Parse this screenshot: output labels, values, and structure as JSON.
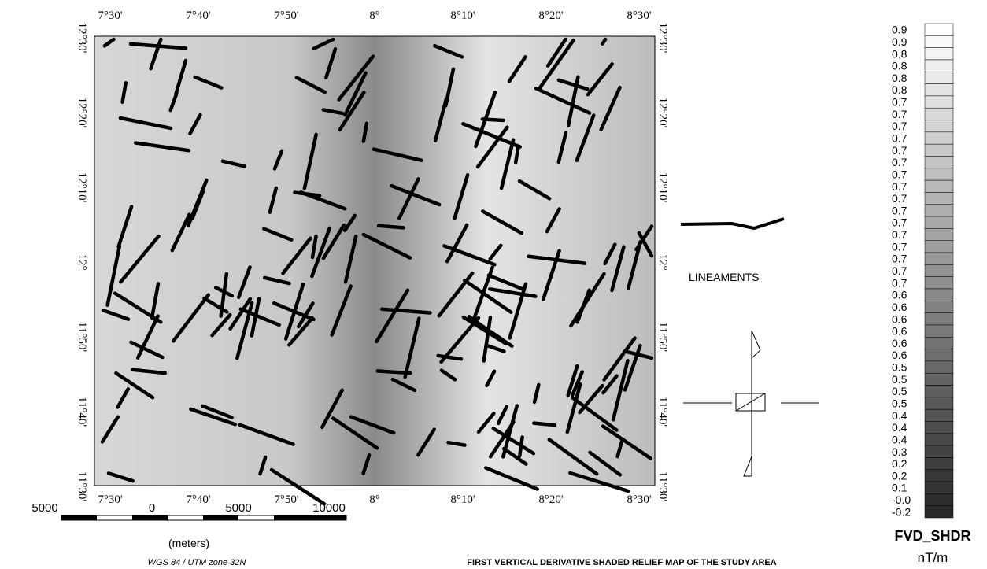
{
  "map": {
    "title": "FIRST VERTICAL DERIVATIVE SHADED RELIEF MAP OF THE STUDY AREA",
    "lon_labels": [
      "7°30'",
      "7°40'",
      "7°50'",
      "8°",
      "8°10'",
      "8°20'",
      "8°30'"
    ],
    "lat_labels": [
      "12°30'",
      "12°20'",
      "12°10'",
      "12°",
      "11°50'",
      "11°40'",
      "11°30'"
    ],
    "legend": {
      "label": "LINEAMENTS"
    },
    "scale_bar": {
      "labels": [
        "5000",
        "0",
        "5000",
        "10000"
      ],
      "unit": "(meters)",
      "projection": "WGS 84 / UTM zone 32N"
    },
    "colorbar": {
      "labels": [
        "0.9",
        "0.9",
        "0.8",
        "0.8",
        "0.8",
        "0.8",
        "0.7",
        "0.7",
        "0.7",
        "0.7",
        "0.7",
        "0.7",
        "0.7",
        "0.7",
        "0.7",
        "0.7",
        "0.7",
        "0.7",
        "0.7",
        "0.7",
        "0.7",
        "0.7",
        "0.6",
        "0.6",
        "0.6",
        "0.6",
        "0.6",
        "0.6",
        "0.5",
        "0.5",
        "0.5",
        "0.5",
        "0.4",
        "0.4",
        "0.4",
        "0.3",
        "0.2",
        "0.2",
        "0.1",
        "-0.0",
        "-0.2"
      ],
      "title": "FVD_SHDR",
      "unit": "nT/m"
    }
  }
}
